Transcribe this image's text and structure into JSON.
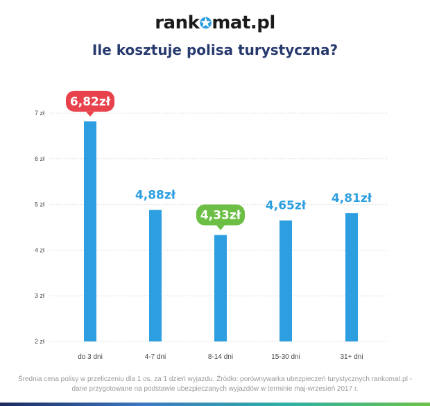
{
  "header": {
    "logo_before": "rank",
    "logo_after": "mat.pl",
    "title": "Ile kosztuje polisa turystyczna?"
  },
  "footnote": {
    "line1": "Średnia cena polisy w przeliczeniu dla 1 os. za 1 dzień wyjazdu. Źródło: porównywarka ubezpieczeń turystycznych rankomat.pl -",
    "line2": "dane przygotowane na podstawie ubezpieczanych wyjazdów w terminie maj-wrzesień 2017 r."
  },
  "colors": {
    "bar": "#2d9ee0",
    "label_default": "#2d9ee0",
    "badge_max": "#e8424c",
    "badge_min": "#6cbf44",
    "grid": "#dddddd",
    "axis_text": "#444444"
  },
  "chart_data": {
    "type": "bar",
    "categories": [
      "do 3 dni",
      "4-7 dni",
      "8-14 dni",
      "15-30 dni",
      "31+ dni"
    ],
    "values": [
      6.82,
      4.88,
      4.33,
      4.65,
      4.81
    ],
    "value_labels": [
      "6,82zł",
      "4,88zł",
      "4,33zł",
      "4,65zł",
      "4,81zł"
    ],
    "label_styles": [
      "badge_max",
      "plain",
      "badge_min",
      "plain",
      "plain"
    ],
    "ylim": [
      2,
      7
    ],
    "yticks": [
      2,
      3,
      4,
      5,
      6,
      7
    ],
    "ytick_labels": [
      "2 zł",
      "3 zł",
      "4 zł",
      "5 zł",
      "6 zł",
      "7 zł"
    ],
    "grid": true
  }
}
